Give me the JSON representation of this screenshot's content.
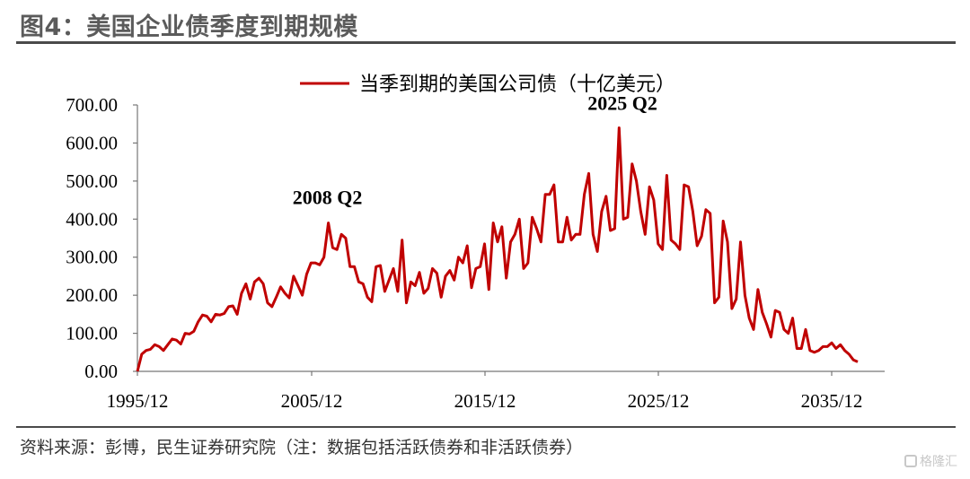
{
  "figure": {
    "title": "图4：美国企业债季度到期规模",
    "source": "资料来源：彭博，民生证券研究院（注：数据包括活跃债券和非活跃债券）",
    "watermark": "格隆汇"
  },
  "chart_data": {
    "type": "line",
    "title": "",
    "xlabel": "",
    "ylabel": "",
    "ylim": [
      0,
      700
    ],
    "yticks": [
      "0.00",
      "100.00",
      "200.00",
      "300.00",
      "400.00",
      "500.00",
      "600.00",
      "700.00"
    ],
    "xticks": [
      "1995/12",
      "2005/12",
      "2015/12",
      "2025/12",
      "2035/12"
    ],
    "legend": "top-center",
    "grid": false,
    "line_color": "#c00000",
    "series": [
      {
        "name": "当季到期的美国公司债（十亿美元）",
        "start": "1995/12",
        "frequency": "quarterly",
        "values": [
          0,
          45,
          55,
          58,
          70,
          65,
          55,
          70,
          85,
          82,
          72,
          100,
          98,
          105,
          130,
          148,
          145,
          130,
          150,
          148,
          152,
          170,
          172,
          150,
          205,
          230,
          190,
          235,
          245,
          230,
          180,
          170,
          195,
          222,
          205,
          193,
          250,
          225,
          200,
          255,
          285,
          285,
          280,
          300,
          390,
          325,
          320,
          360,
          350,
          275,
          275,
          235,
          230,
          195,
          183,
          275,
          278,
          210,
          240,
          270,
          210,
          345,
          180,
          235,
          225,
          260,
          205,
          218,
          270,
          258,
          195,
          250,
          265,
          240,
          300,
          285,
          330,
          220,
          270,
          275,
          335,
          215,
          390,
          340,
          380,
          245,
          340,
          360,
          400,
          270,
          285,
          405,
          375,
          340,
          465,
          465,
          490,
          340,
          340,
          405,
          345,
          360,
          360,
          465,
          520,
          360,
          315,
          420,
          460,
          370,
          375,
          640,
          400,
          405,
          545,
          500,
          420,
          360,
          485,
          450,
          335,
          320,
          515,
          345,
          335,
          320,
          490,
          485,
          420,
          330,
          355,
          425,
          415,
          180,
          195,
          395,
          340,
          165,
          190,
          340,
          200,
          140,
          110,
          215,
          155,
          125,
          90,
          160,
          155,
          110,
          100,
          140,
          60,
          60,
          110,
          55,
          50,
          55,
          65,
          65,
          75,
          60,
          70,
          55,
          45,
          30,
          25
        ]
      }
    ],
    "annotations": [
      {
        "text": "2008 Q2",
        "x": "2008/06",
        "y": 392
      },
      {
        "text": "2025 Q2",
        "x": "2025/06",
        "y": 640
      }
    ]
  }
}
